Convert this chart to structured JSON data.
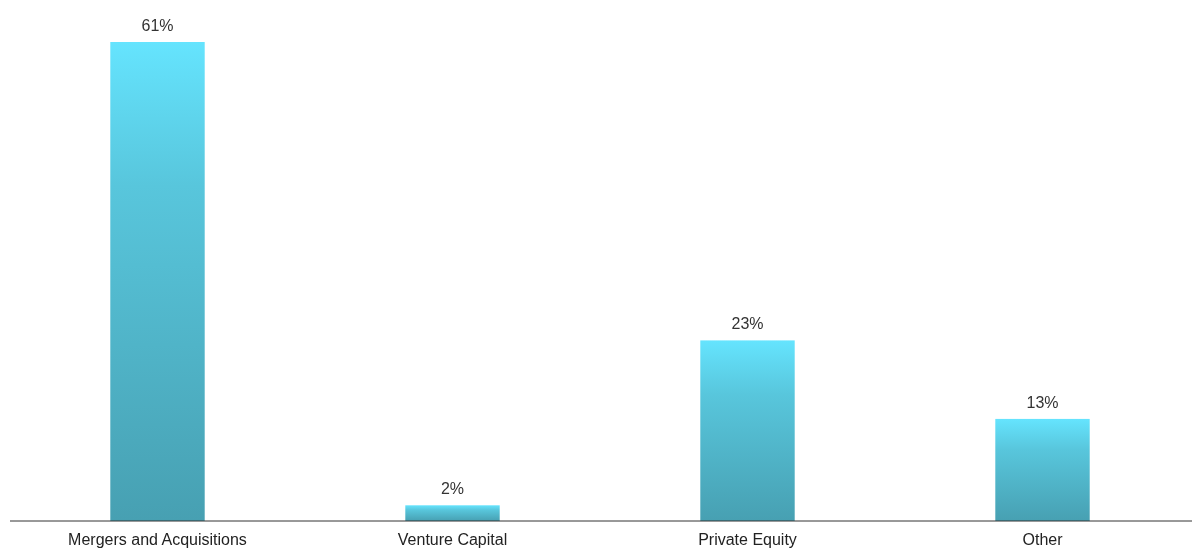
{
  "chart_data": {
    "type": "bar",
    "categories": [
      "Mergers and Acquisitions",
      "Venture Capital",
      "Private Equity",
      "Other"
    ],
    "values": [
      61,
      2,
      23,
      13
    ],
    "value_labels": [
      "61%",
      "2%",
      "23%",
      "13%"
    ],
    "color": "#58c6dc"
  }
}
